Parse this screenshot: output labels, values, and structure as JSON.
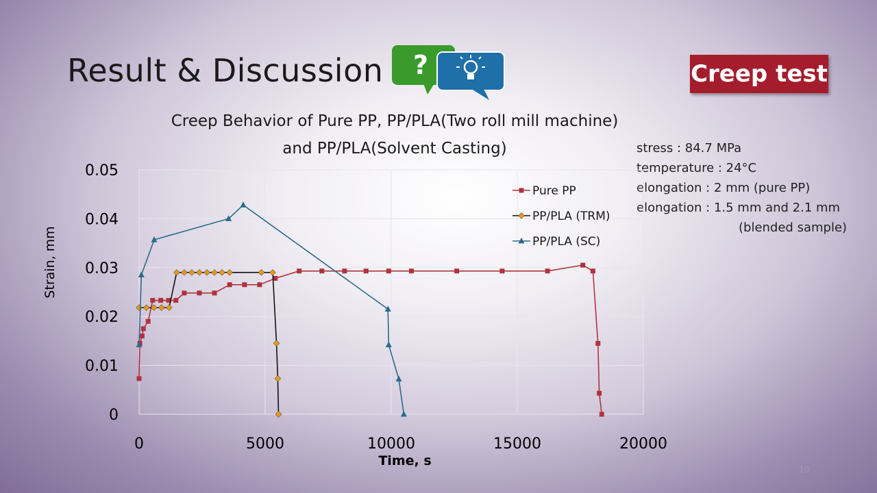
{
  "slide": {
    "title": "Result & Discussion",
    "badge": "Creep test",
    "page_number": "10",
    "icon_question": "?",
    "notes": [
      "stress : 84.7 MPa",
      "temperature : 24°C",
      "elongation : 2 mm (pure PP)",
      "elongation : 1.5 mm and 2.1 mm",
      "(blended sample)"
    ]
  },
  "colors": {
    "badge": "#a51d2d",
    "bubble_green": "#3a9a2c",
    "bubble_blue": "#1f6fa8"
  },
  "chart_data": {
    "type": "scatter",
    "title_lines": [
      "Creep Behavior of  Pure PP, PP/PLA(Two roll mill machine)",
      "and PP/PLA(Solvent Casting)"
    ],
    "xlabel": "Time, s",
    "ylabel": "Strain, mm",
    "xlim": [
      0,
      20000
    ],
    "ylim": [
      0,
      0.05
    ],
    "xticks": [
      0,
      5000,
      10000,
      15000,
      20000
    ],
    "yticks": [
      0,
      0.01,
      0.02,
      0.03,
      0.04,
      0.05
    ],
    "ytick_labels": [
      "0",
      "0.01",
      "0.02",
      "0.03",
      "0.04",
      "0.05"
    ],
    "grid": true,
    "legend_position": "top-right",
    "series": [
      {
        "name": "Pure PP",
        "color": "#b0323d",
        "marker": "square",
        "points": [
          [
            0,
            0.0073
          ],
          [
            30,
            0.0145
          ],
          [
            120,
            0.016
          ],
          [
            170,
            0.0175
          ],
          [
            360,
            0.019
          ],
          [
            540,
            0.0233
          ],
          [
            860,
            0.0233
          ],
          [
            1170,
            0.0233
          ],
          [
            1460,
            0.0233
          ],
          [
            1790,
            0.0248
          ],
          [
            2390,
            0.0248
          ],
          [
            2990,
            0.0248
          ],
          [
            3590,
            0.0265
          ],
          [
            4180,
            0.0265
          ],
          [
            4780,
            0.0265
          ],
          [
            5400,
            0.0278
          ],
          [
            6350,
            0.0293
          ],
          [
            7250,
            0.0293
          ],
          [
            8150,
            0.0293
          ],
          [
            9000,
            0.0293
          ],
          [
            9900,
            0.0293
          ],
          [
            10800,
            0.0293
          ],
          [
            12600,
            0.0293
          ],
          [
            14400,
            0.0293
          ],
          [
            16200,
            0.0293
          ],
          [
            17600,
            0.0305
          ],
          [
            18000,
            0.0293
          ],
          [
            18200,
            0.0145
          ],
          [
            18250,
            0.0043
          ],
          [
            18350,
            0
          ]
        ]
      },
      {
        "name": "PP/PLA (TRM)",
        "color": "#e39a1e",
        "marker": "diamond",
        "points": [
          [
            0,
            0.0218
          ],
          [
            290,
            0.0218
          ],
          [
            590,
            0.0218
          ],
          [
            890,
            0.0218
          ],
          [
            1190,
            0.0218
          ],
          [
            1490,
            0.029
          ],
          [
            1790,
            0.029
          ],
          [
            2090,
            0.029
          ],
          [
            2390,
            0.029
          ],
          [
            2690,
            0.029
          ],
          [
            2990,
            0.029
          ],
          [
            3290,
            0.029
          ],
          [
            3590,
            0.029
          ],
          [
            4850,
            0.029
          ],
          [
            5300,
            0.029
          ],
          [
            5450,
            0.0145
          ],
          [
            5500,
            0.0073
          ],
          [
            5530,
            0
          ]
        ]
      },
      {
        "name": "PP/PLA (SC)",
        "color": "#2a6a8c",
        "marker": "triangle",
        "points": [
          [
            0,
            0.0142
          ],
          [
            90,
            0.0285
          ],
          [
            600,
            0.0357
          ],
          [
            3550,
            0.04
          ],
          [
            4130,
            0.0428
          ],
          [
            9870,
            0.0215
          ],
          [
            9900,
            0.0142
          ],
          [
            10300,
            0.0072
          ],
          [
            10500,
            0
          ]
        ]
      }
    ]
  }
}
